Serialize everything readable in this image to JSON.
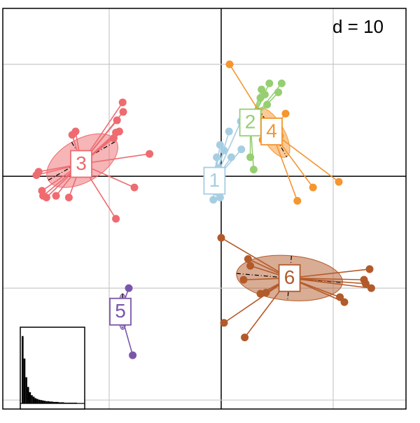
{
  "chart_data": [
    {
      "type": "scatter",
      "annotation": "d = 10",
      "xlim": [
        -19.5,
        16.5
      ],
      "ylim": [
        -20.8,
        15
      ],
      "xticks": [
        -10,
        0,
        10
      ],
      "yticks": [
        -20,
        -10,
        0,
        10
      ],
      "grid": true,
      "series": [
        {
          "name": "1",
          "color": "#a6cee3",
          "centroid": [
            -0.6,
            -0.4
          ],
          "x": [
            1.75,
            0.7,
            -0.1,
            0.25,
            1.8,
            0.9,
            -0.4,
            -0.25,
            -0.7,
            -1,
            -0.7,
            -0.1,
            -0.4
          ],
          "y": [
            4.9,
            4,
            2.8,
            2.3,
            2.4,
            1.7,
            1.7,
            0.75,
            0.4,
            -1.1,
            -2.1,
            -1.9,
            -1.4
          ]
        },
        {
          "name": "2",
          "color": "#96cf72",
          "centroid": [
            2.6,
            4.8
          ],
          "x": [
            3.6,
            3.9,
            4.3,
            5.4,
            5.1,
            4.1,
            2.9,
            2.6,
            3.5
          ],
          "y": [
            7.75,
            7.3,
            8.3,
            8.3,
            7.5,
            6.4,
            0.6,
            1.7,
            7
          ]
        },
        {
          "name": "3",
          "color": "#ee6b70",
          "centroid": [
            -12.5,
            1.1
          ],
          "ellipse": {
            "cx": -12.4,
            "cy": 1.4,
            "rx": 3.5,
            "ry": 1.9,
            "angle": 30
          },
          "x": [
            -8.8,
            -8.75,
            -9.3,
            -9.1,
            -9.4,
            -9.6,
            -13,
            -13.3,
            -6.4,
            -7.75,
            -9.4,
            -16.3,
            -16.5,
            -15.9,
            -15.6,
            -14.75,
            -13.6,
            -16
          ],
          "y": [
            6.6,
            5.75,
            5,
            4,
            3.9,
            3.4,
            4,
            3.7,
            2,
            -1,
            -3.8,
            0.4,
            0.1,
            -1.75,
            -1.9,
            -1.75,
            -1.9,
            -1.3
          ]
        },
        {
          "name": "4",
          "color": "#f5962f",
          "centroid": [
            4.5,
            4
          ],
          "ellipse": {
            "cx": 4.6,
            "cy": 3.9,
            "rx": 2.5,
            "ry": 1.0,
            "angle": -60
          },
          "x": [
            0.75,
            5.75,
            5.25,
            6.8,
            8.2,
            10.5,
            4,
            3.7
          ],
          "y": [
            10,
            5.6,
            3.6,
            -2.2,
            -1,
            -0.5,
            3.9,
            3.25
          ]
        },
        {
          "name": "5",
          "color": "#7a55ac",
          "centroid": [
            -9,
            -12.1
          ],
          "ellipse": {
            "cx": -8.8,
            "cy": -12.1,
            "rx": 0.4,
            "ry": 1.6,
            "angle": 0
          },
          "x": [
            -8.25,
            -7.9
          ],
          "y": [
            -10,
            -16
          ]
        },
        {
          "name": "6",
          "color": "#b35a2a",
          "centroid": [
            6.1,
            -9.1
          ],
          "ellipse": {
            "cx": 6.1,
            "cy": -9.1,
            "rx": 4.75,
            "ry": 2,
            "angle": -5
          },
          "x": [
            0,
            2.4,
            2.6,
            2,
            3.5,
            4,
            0.25,
            2.1,
            13.25,
            13.4,
            12.75,
            12.9,
            10.6,
            11
          ],
          "y": [
            -5.5,
            -7.4,
            -8,
            -9.25,
            -10.5,
            -10.4,
            -13.1,
            -14.4,
            -8.3,
            -10,
            -9.25,
            -9.6,
            -10.8,
            -11.25
          ]
        }
      ]
    },
    {
      "type": "bar",
      "color": "#000000",
      "ylim": [
        0,
        100
      ],
      "categories": [
        null,
        null,
        null,
        null,
        null,
        null,
        null,
        null,
        null,
        null,
        null,
        null,
        null,
        null,
        null,
        null,
        null,
        null,
        null,
        null,
        null,
        null,
        null,
        null,
        null,
        null,
        null,
        null,
        null,
        null
      ],
      "values": [
        90,
        60,
        35,
        22,
        15,
        11,
        9,
        7,
        6,
        5,
        4.5,
        4,
        3.5,
        3,
        3,
        2.5,
        2.5,
        2,
        2,
        2,
        1.5,
        1.5,
        1.5,
        1,
        1,
        1,
        1,
        1,
        1,
        1
      ]
    }
  ]
}
